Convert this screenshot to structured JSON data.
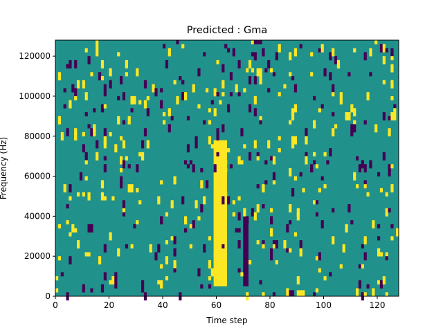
{
  "chart_data": {
    "type": "heatmap",
    "title": "Predicted : Gma",
    "xlabel": "Time step",
    "ylabel": "Frequency (Hz)",
    "xlim": [
      0,
      128
    ],
    "ylim": [
      0,
      128000
    ],
    "x_ticks": [
      0,
      20,
      40,
      60,
      80,
      100,
      120
    ],
    "x_tick_labels": [
      "0",
      "20",
      "40",
      "60",
      "80",
      "100",
      "120"
    ],
    "y_ticks": [
      0,
      20000,
      40000,
      60000,
      80000,
      100000,
      120000
    ],
    "y_tick_labels": [
      "0",
      "20000",
      "40000",
      "60000",
      "80000",
      "100000",
      "120000"
    ],
    "grid": false,
    "value_levels": [
      -1,
      0,
      1
    ],
    "colors": {
      "low": "#440154",
      "mid": "#21918c",
      "high": "#fde725"
    },
    "background_value": 0,
    "notable_regions": [
      {
        "value": 1,
        "x": [
          59,
          64
        ],
        "y": [
          5000,
          78000
        ]
      },
      {
        "value": -1,
        "x": [
          70,
          72
        ],
        "y": [
          5000,
          40000
        ]
      },
      {
        "value": -1,
        "x": [
          86,
          89
        ],
        "y": [
          0,
          3000
        ]
      },
      {
        "value": 1,
        "x": [
          90,
          93
        ],
        "y": [
          0,
          3000
        ]
      }
    ]
  }
}
